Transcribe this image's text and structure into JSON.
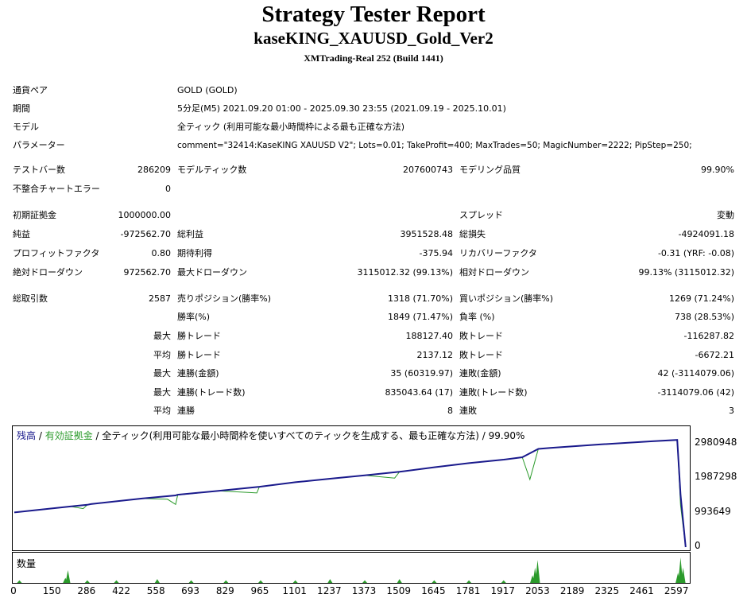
{
  "header": {
    "title": "Strategy Tester Report",
    "subtitle": "kaseKING_XAUUSD_Gold_Ver2",
    "server": "XMTrading-Real 252 (Build 1441)"
  },
  "info": {
    "pair_label": "通貨ペア",
    "pair_value": "GOLD (GOLD)",
    "period_label": "期間",
    "period_value": "5分足(M5) 2021.09.20 01:00 - 2025.09.30 23:55 (2021.09.19 - 2025.10.01)",
    "model_label": "モデル",
    "model_value": "全ティック (利用可能な最小時間枠による最も正確な方法)",
    "params_label": "パラメーター",
    "params_value": "comment=\"32414:KaseKING XAUUSD V2\"; Lots=0.01; TakeProfit=400; MaxTrades=50; MagicNumber=2222; PipStep=250;"
  },
  "stats": {
    "bars_label": "テストバー数",
    "bars_value": "286209",
    "ticks_label": "モデルティック数",
    "ticks_value": "207600743",
    "quality_label": "モデリング品質",
    "quality_value": "99.90%",
    "mismatch_label": "不整合チャートエラー",
    "mismatch_value": "0",
    "deposit_label": "初期証拠金",
    "deposit_value": "1000000.00",
    "spread_label": "スプレッド",
    "spread_value": "変動",
    "netprofit_label": "純益",
    "netprofit_value": "-972562.70",
    "grossprofit_label": "総利益",
    "grossprofit_value": "3951528.48",
    "grossloss_label": "総損失",
    "grossloss_value": "-4924091.18",
    "pf_label": "プロフィットファクタ",
    "pf_value": "0.80",
    "expected_label": "期待利得",
    "expected_value": "-375.94",
    "recovery_label": "リカバリーファクタ",
    "recovery_value": "-0.31 (YRF: -0.08)",
    "absdd_label": "絶対ドローダウン",
    "absdd_value": "972562.70",
    "maxdd_label": "最大ドローダウン",
    "maxdd_value": "3115012.32 (99.13%)",
    "reldd_label": "相対ドローダウン",
    "reldd_value": "99.13% (3115012.32)",
    "trades_label": "総取引数",
    "trades_value": "2587",
    "short_label": "売りポジション(勝率%)",
    "short_value": "1318 (71.70%)",
    "long_label": "買いポジション(勝率%)",
    "long_value": "1269 (71.24%)",
    "winrate_label": "勝率(%)",
    "winrate_value": "1849 (71.47%)",
    "lossrate_label": "負率 (%)",
    "lossrate_value": "738 (28.53%)",
    "max_label": "最大",
    "avg_label": "平均",
    "winTrade_label": "勝トレード",
    "lossTrade_label": "敗トレード",
    "largestWin_value": "188127.40",
    "largestLoss_value": "-116287.82",
    "avgWin_value": "2137.12",
    "avgLoss_value": "-6672.21",
    "consWinsMoney_label": "連勝(金額)",
    "consWinsMoney_value": "35 (60319.97)",
    "consLossMoney_label": "連敗(金額)",
    "consLossMoney_value": "42 (-3114079.06)",
    "consWinsCount_label": "連勝(トレード数)",
    "consWinsCount_value": "835043.64 (17)",
    "consLossCount_label": "連敗(トレード数)",
    "consLossCount_value": "-3114079.06 (42)",
    "avgConsWins_label": "連勝",
    "avgConsWins_value": "8",
    "avgConsLoss_label": "連敗",
    "avgConsLoss_value": "3"
  },
  "legend": {
    "balance": "残高",
    "sep1": " / ",
    "equity": "有効証拠金",
    "rest": " / 全ティック(利用可能な最小時間枠を使いすべてのティックを生成する、最も正確な方法) / 99.90%"
  },
  "volume_label": "数量",
  "colors": {
    "balance": "#1a1a8c",
    "equity": "#2a9a2a",
    "volume": "#2a9a2a"
  },
  "chart_data": {
    "type": "line",
    "x_ticks": [
      "0",
      "150",
      "286",
      "422",
      "558",
      "693",
      "829",
      "965",
      "1101",
      "1237",
      "1373",
      "1509",
      "1645",
      "1781",
      "1917",
      "2053",
      "2189",
      "2325",
      "2461",
      "2597"
    ],
    "y_ticks": [
      "2980948",
      "1987298",
      "993649",
      "0"
    ],
    "xlim": [
      0,
      2640
    ],
    "ylim": [
      0,
      3300000
    ],
    "series": [
      {
        "name": "残高",
        "x": [
          0,
          220,
          286,
          300,
          500,
          632,
          640,
          800,
          960,
          1101,
          1237,
          1373,
          1509,
          1645,
          1781,
          1917,
          1990,
          2053,
          2100,
          2300,
          2500,
          2597,
          2610,
          2630
        ],
        "y": [
          1000000,
          1170000,
          1220000,
          1240000,
          1400000,
          1490000,
          1510000,
          1620000,
          1740000,
          1870000,
          1970000,
          2070000,
          2170000,
          2300000,
          2420000,
          2520000,
          2590000,
          2830000,
          2860000,
          2960000,
          3050000,
          3090000,
          1500000,
          0
        ]
      },
      {
        "name": "有効証拠金",
        "x": [
          0,
          220,
          270,
          286,
          300,
          500,
          600,
          632,
          640,
          800,
          950,
          960,
          1101,
          1237,
          1373,
          1490,
          1509,
          1645,
          1781,
          1917,
          1990,
          2020,
          2053,
          2100,
          2300,
          2500,
          2597,
          2610,
          2630
        ],
        "y": [
          1000000,
          1170000,
          1110000,
          1220000,
          1240000,
          1400000,
          1380000,
          1230000,
          1500000,
          1620000,
          1560000,
          1740000,
          1870000,
          1970000,
          2070000,
          1990000,
          2170000,
          2300000,
          2420000,
          2520000,
          2590000,
          1950000,
          2830000,
          2860000,
          2960000,
          3050000,
          3090000,
          1200000,
          0
        ]
      }
    ],
    "volume": {
      "x": [
        20,
        200,
        210,
        286,
        400,
        560,
        693,
        829,
        965,
        1101,
        1237,
        1373,
        1509,
        1645,
        1781,
        1917,
        2030,
        2040,
        2050,
        2600,
        2610,
        2620
      ],
      "y": [
        0.1,
        0.2,
        0.5,
        0.1,
        0.1,
        0.15,
        0.1,
        0.1,
        0.1,
        0.1,
        0.15,
        0.1,
        0.15,
        0.1,
        0.1,
        0.1,
        0.3,
        0.6,
        0.9,
        0.4,
        1.0,
        0.6
      ]
    }
  }
}
